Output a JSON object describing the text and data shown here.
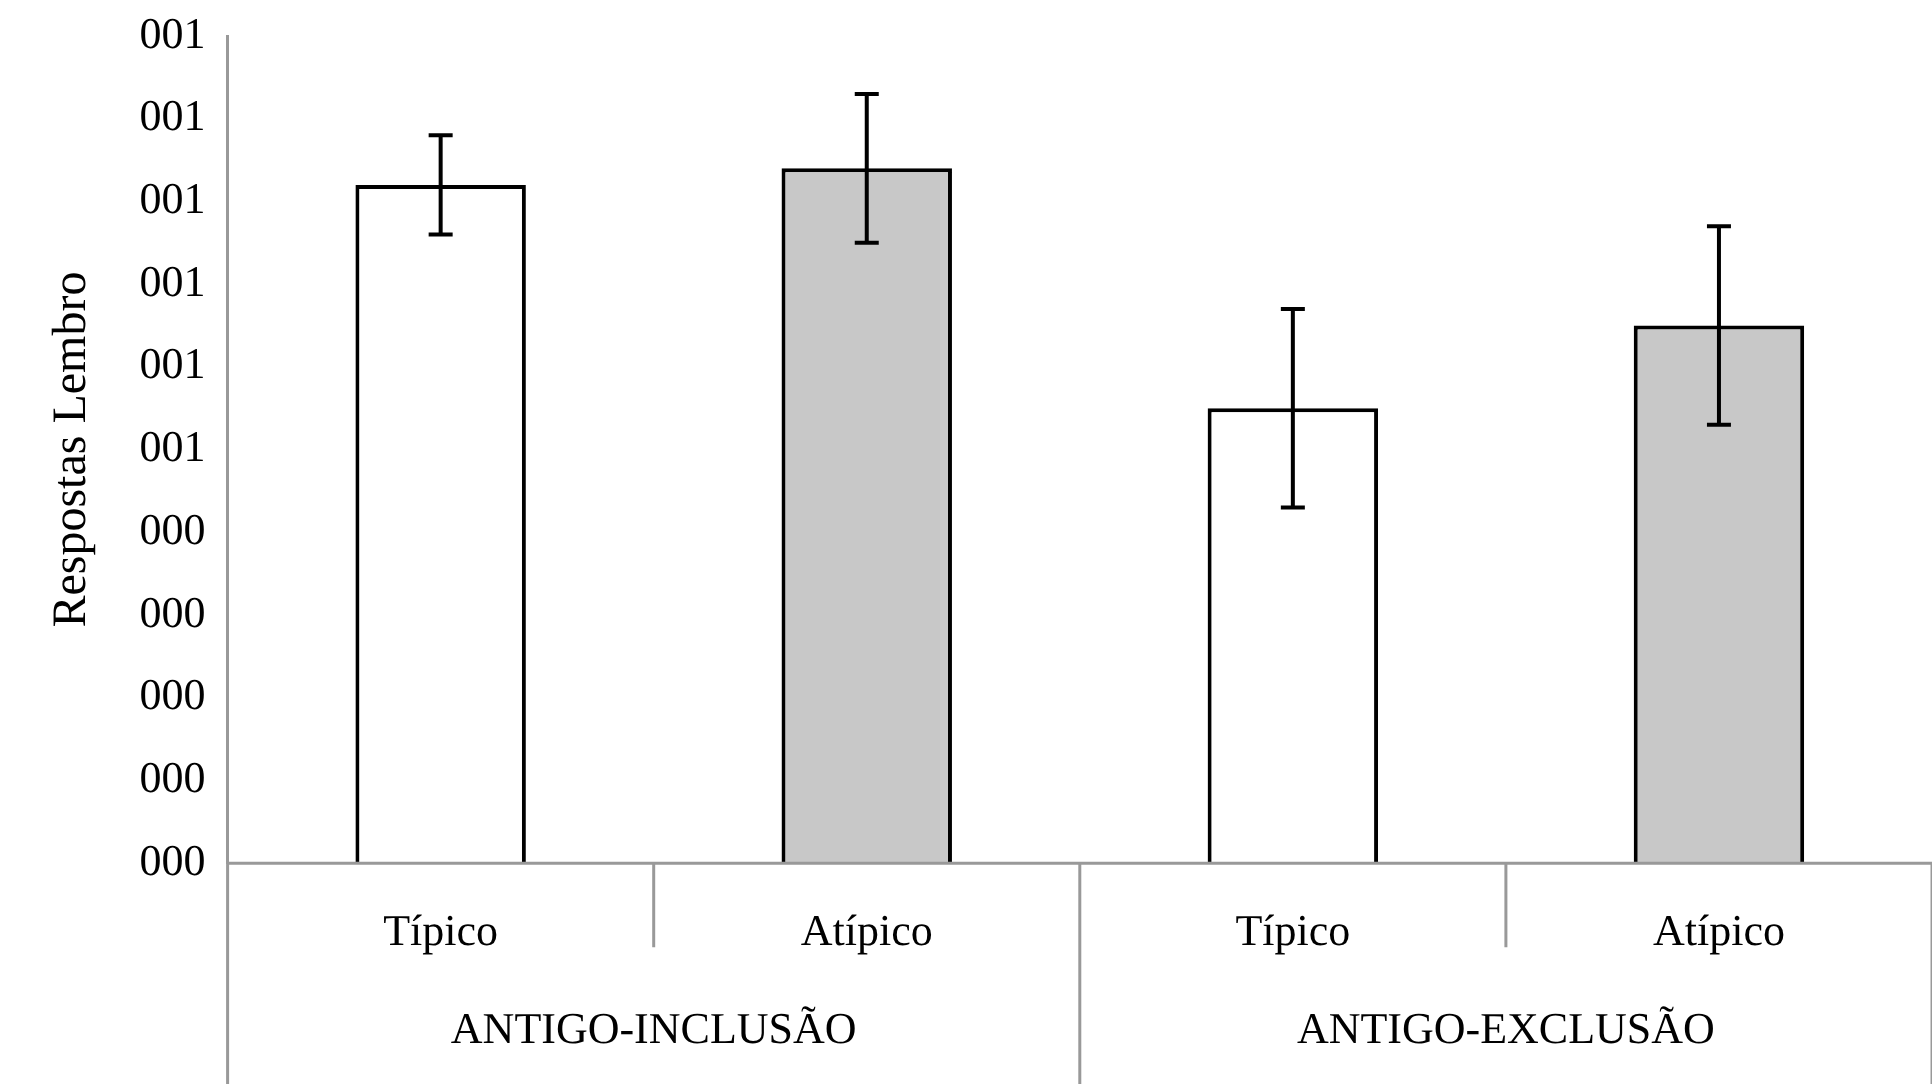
{
  "chart_data": {
    "type": "bar",
    "ylabel": "Respostas Lembro",
    "categories": [
      "Típico",
      "Atípico",
      "Típico",
      "Atípico"
    ],
    "values": [
      0.82,
      0.84,
      0.55,
      0.65
    ],
    "colors": [
      "#ffffff",
      "#c8c8c8",
      "#ffffff",
      "#c8c8c8"
    ],
    "errors": [
      0.06,
      0.09,
      0.12,
      0.12
    ],
    "ylim": [
      0,
      1
    ],
    "yticks": [
      {
        "value": 0,
        "label": "000"
      },
      {
        "value": 0.1,
        "label": "000"
      },
      {
        "value": 0.2,
        "label": "000"
      },
      {
        "value": 0.3,
        "label": "000"
      },
      {
        "value": 0.4,
        "label": "000"
      },
      {
        "value": 0.5,
        "label": "001"
      },
      {
        "value": 0.6,
        "label": "001"
      },
      {
        "value": 0.7,
        "label": "001"
      },
      {
        "value": 0.8,
        "label": "001"
      },
      {
        "value": 0.9,
        "label": "001"
      },
      {
        "value": 1,
        "label": "001"
      }
    ],
    "annotations": [
      "ANTIGO-INCLUSÃO",
      "ANTIGO-EXCLUSÃO"
    ],
    "grid": false,
    "legend": false
  }
}
